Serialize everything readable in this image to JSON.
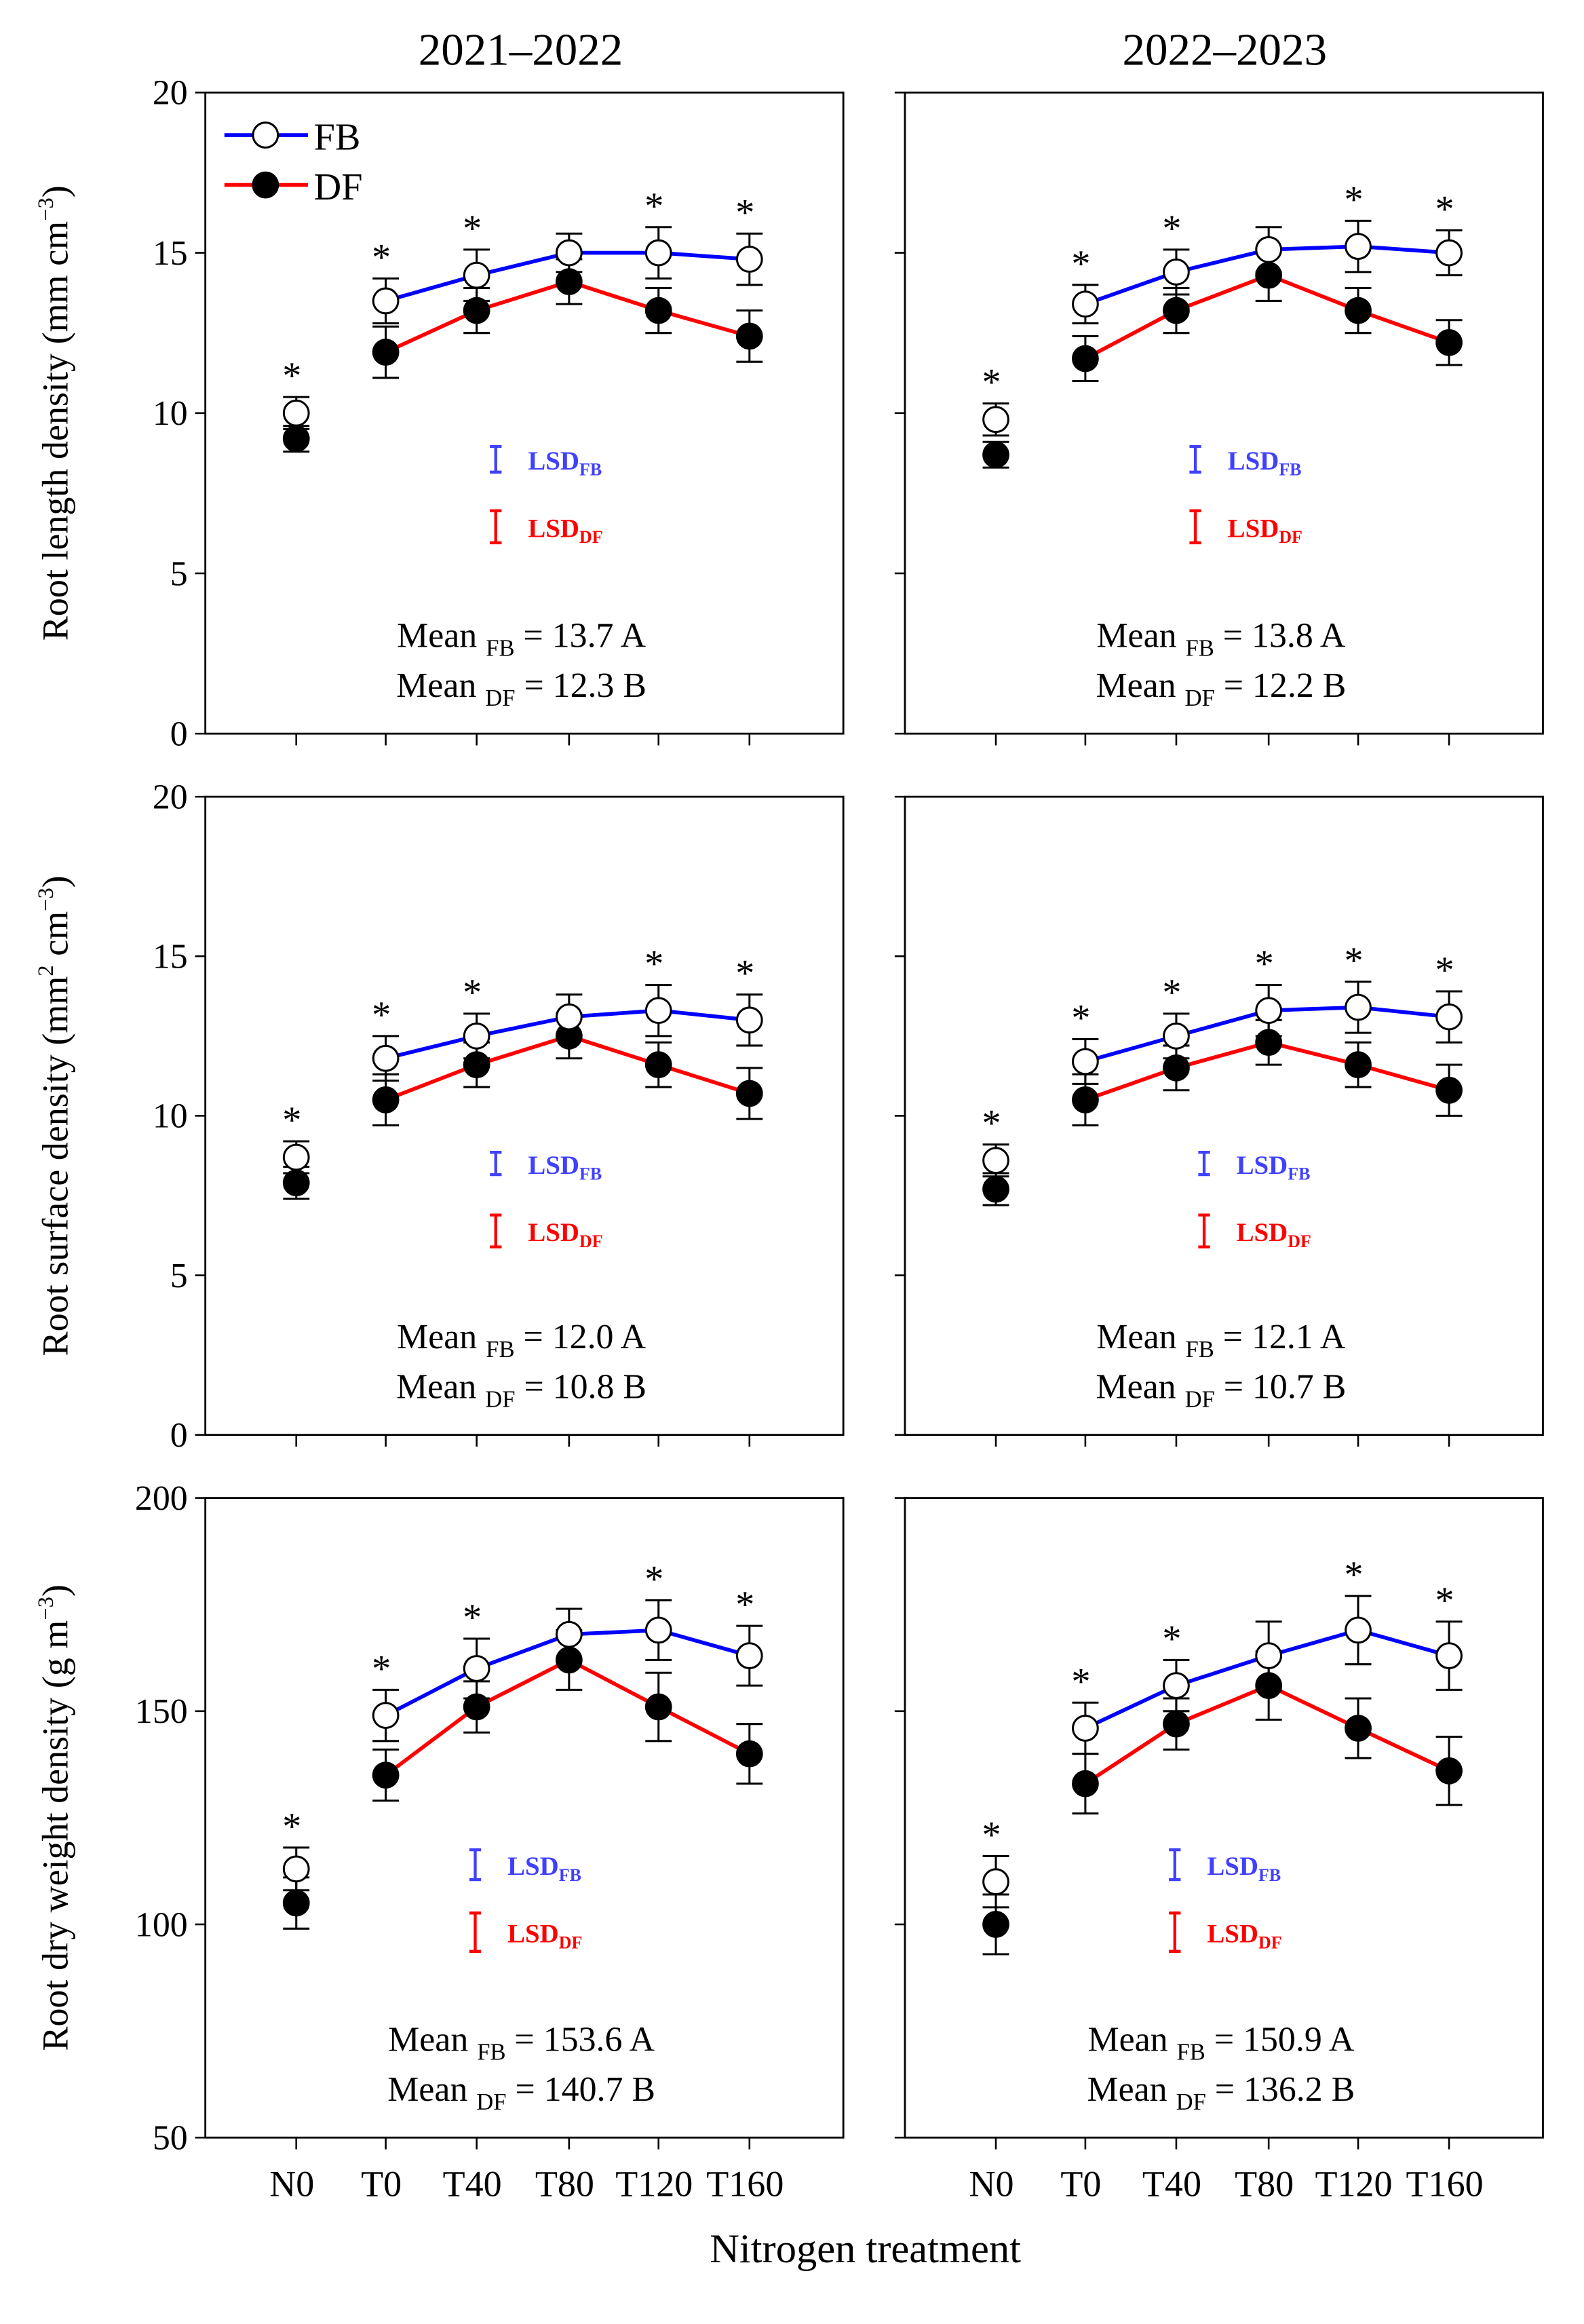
{
  "colors": {
    "fb": "#0000ff",
    "df": "#ff0000",
    "lsd_fb": "#4040ff",
    "lsd_df": "#ff0000"
  },
  "column_titles": [
    "2021–2022",
    "2022–2023"
  ],
  "xlabel": "Nitrogen treatment",
  "legend": {
    "fb": "FB",
    "df": "DF",
    "placement": "top-left"
  },
  "lsd_labels": {
    "main": "LSD",
    "fb_sub": "FB",
    "df_sub": "DF"
  },
  "mean_word": "Mean",
  "chart_data": [
    {
      "type": "line",
      "row": 0,
      "col": 0,
      "ylabel": [
        {
          "t": "Root length density (mm cm"
        },
        {
          "t": "−3",
          "sup": true
        },
        {
          "t": ")"
        }
      ],
      "ylim": [
        0,
        20
      ],
      "yticks": [
        0,
        5,
        10,
        15,
        20
      ],
      "categories": [
        "N0",
        "T0",
        "T40",
        "T80",
        "T120",
        "T160"
      ],
      "series": [
        {
          "name": "FB",
          "values": [
            10.0,
            13.5,
            14.3,
            15.0,
            15.0,
            14.8
          ],
          "errors": [
            0.5,
            0.7,
            0.8,
            0.6,
            0.8,
            0.8
          ]
        },
        {
          "name": "DF",
          "values": [
            9.2,
            11.9,
            13.2,
            14.1,
            13.2,
            12.4
          ],
          "errors": [
            0.4,
            0.8,
            0.7,
            0.7,
            0.7,
            0.8
          ]
        }
      ],
      "significant": [
        true,
        true,
        true,
        false,
        true,
        true
      ],
      "lsd": {
        "FB": 0.8,
        "DF": 1.0
      },
      "mean_fb": "13.7 A",
      "mean_df": "12.3 B"
    },
    {
      "type": "line",
      "row": 0,
      "col": 1,
      "ylim": [
        0,
        20
      ],
      "yticks": [
        0,
        5,
        10,
        15,
        20
      ],
      "categories": [
        "N0",
        "T0",
        "T40",
        "T80",
        "T120",
        "T160"
      ],
      "series": [
        {
          "name": "FB",
          "values": [
            9.8,
            13.4,
            14.4,
            15.1,
            15.2,
            15.0
          ],
          "errors": [
            0.5,
            0.6,
            0.7,
            0.7,
            0.8,
            0.7
          ]
        },
        {
          "name": "DF",
          "values": [
            8.7,
            11.7,
            13.2,
            14.3,
            13.2,
            12.2
          ],
          "errors": [
            0.4,
            0.7,
            0.7,
            0.8,
            0.7,
            0.7
          ]
        }
      ],
      "significant": [
        true,
        true,
        true,
        false,
        true,
        true
      ],
      "lsd": {
        "FB": 0.8,
        "DF": 1.0
      },
      "mean_fb": "13.8 A",
      "mean_df": "12.2 B"
    },
    {
      "type": "line",
      "row": 1,
      "col": 0,
      "ylabel": [
        {
          "t": "Root surface density (mm"
        },
        {
          "t": "2",
          "sup": true
        },
        {
          "t": " cm"
        },
        {
          "t": "−3",
          "sup": true
        },
        {
          "t": ")"
        }
      ],
      "ylim": [
        0,
        20
      ],
      "yticks": [
        0,
        5,
        10,
        15,
        20
      ],
      "categories": [
        "N0",
        "T0",
        "T40",
        "T80",
        "T120",
        "T160"
      ],
      "series": [
        {
          "name": "FB",
          "values": [
            8.7,
            11.8,
            12.5,
            13.1,
            13.3,
            13.0
          ],
          "errors": [
            0.5,
            0.7,
            0.7,
            0.7,
            0.8,
            0.8
          ]
        },
        {
          "name": "DF",
          "values": [
            7.9,
            10.5,
            11.6,
            12.5,
            11.6,
            10.7
          ],
          "errors": [
            0.5,
            0.8,
            0.7,
            0.7,
            0.7,
            0.8
          ]
        }
      ],
      "significant": [
        true,
        true,
        true,
        false,
        true,
        true
      ],
      "lsd": {
        "FB": 0.7,
        "DF": 1.0
      },
      "mean_fb": "12.0 A",
      "mean_df": "10.8 B"
    },
    {
      "type": "line",
      "row": 1,
      "col": 1,
      "ylim": [
        0,
        20
      ],
      "yticks": [
        0,
        5,
        10,
        15,
        20
      ],
      "categories": [
        "N0",
        "T0",
        "T40",
        "T80",
        "T120",
        "T160"
      ],
      "series": [
        {
          "name": "FB",
          "values": [
            8.6,
            11.7,
            12.5,
            13.3,
            13.4,
            13.1
          ],
          "errors": [
            0.5,
            0.7,
            0.7,
            0.8,
            0.8,
            0.8
          ]
        },
        {
          "name": "DF",
          "values": [
            7.7,
            10.5,
            11.5,
            12.3,
            11.6,
            10.8
          ],
          "errors": [
            0.5,
            0.8,
            0.7,
            0.7,
            0.7,
            0.8
          ]
        }
      ],
      "significant": [
        true,
        true,
        true,
        true,
        true,
        true
      ],
      "lsd": {
        "FB": 0.7,
        "DF": 1.0
      },
      "mean_fb": "12.1 A",
      "mean_df": "10.7 B"
    },
    {
      "type": "line",
      "row": 2,
      "col": 0,
      "ylabel": [
        {
          "t": "Root dry weight density (g m"
        },
        {
          "t": "−3",
          "sup": true
        },
        {
          "t": ")"
        }
      ],
      "ylim": [
        50,
        200
      ],
      "yticks": [
        50,
        100,
        150,
        200
      ],
      "categories": [
        "N0",
        "T0",
        "T40",
        "T80",
        "T120",
        "T160"
      ],
      "series": [
        {
          "name": "FB",
          "values": [
            113,
            149,
            160,
            168,
            169,
            163
          ],
          "errors": [
            5,
            6,
            7,
            6,
            7,
            7
          ]
        },
        {
          "name": "DF",
          "values": [
            105,
            135,
            151,
            162,
            151,
            140
          ],
          "errors": [
            6,
            6,
            6,
            7,
            8,
            7
          ]
        }
      ],
      "significant": [
        true,
        true,
        true,
        false,
        true,
        true
      ],
      "lsd": {
        "FB": 7,
        "DF": 9
      },
      "mean_fb": "153.6 A",
      "mean_df": "140.7 B"
    },
    {
      "type": "line",
      "row": 2,
      "col": 1,
      "ylim": [
        50,
        200
      ],
      "yticks": [
        50,
        100,
        150,
        200
      ],
      "categories": [
        "N0",
        "T0",
        "T40",
        "T80",
        "T120",
        "T160"
      ],
      "series": [
        {
          "name": "FB",
          "values": [
            110,
            146,
            156,
            163,
            169,
            163
          ],
          "errors": [
            6,
            6,
            6,
            8,
            8,
            8
          ]
        },
        {
          "name": "DF",
          "values": [
            100,
            133,
            147,
            156,
            146,
            136
          ],
          "errors": [
            7,
            7,
            6,
            8,
            7,
            8
          ]
        }
      ],
      "significant": [
        true,
        true,
        true,
        false,
        true,
        true
      ],
      "lsd": {
        "FB": 7,
        "DF": 9
      },
      "mean_fb": "150.9 A",
      "mean_df": "136.2 B"
    }
  ]
}
